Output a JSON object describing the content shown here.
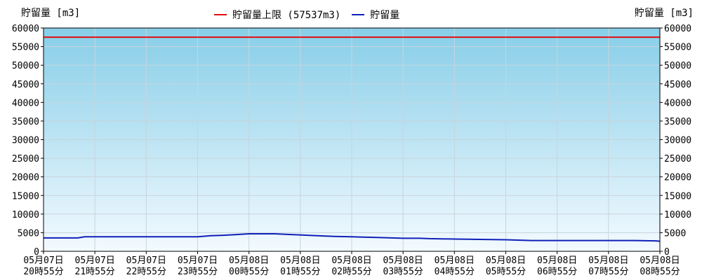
{
  "chart_data": {
    "type": "line",
    "ylabel_left": "貯留量 [m3]",
    "ylabel_right": "貯留量 [m3]",
    "ylim": [
      0,
      60000
    ],
    "yticks": [
      0,
      5000,
      10000,
      15000,
      20000,
      25000,
      30000,
      35000,
      40000,
      45000,
      50000,
      55000,
      60000
    ],
    "x_categories": [
      [
        "05月07日",
        "20時55分"
      ],
      [
        "05月07日",
        "21時55分"
      ],
      [
        "05月07日",
        "22時55分"
      ],
      [
        "05月07日",
        "23時55分"
      ],
      [
        "05月08日",
        "00時55分"
      ],
      [
        "05月08日",
        "01時55分"
      ],
      [
        "05月08日",
        "02時55分"
      ],
      [
        "05月08日",
        "03時55分"
      ],
      [
        "05月08日",
        "04時55分"
      ],
      [
        "05月08日",
        "05時55分"
      ],
      [
        "05月08日",
        "06時55分"
      ],
      [
        "05月08日",
        "07時55分"
      ],
      [
        "05月08日",
        "08時55分"
      ]
    ],
    "grid": true,
    "legend_position": "top-center",
    "background_gradient": [
      "#87cee8",
      "#f3faff"
    ],
    "series": [
      {
        "name": "貯留量上限 (57537m3)",
        "color": "#e01010",
        "type": "constant",
        "value": 57537
      },
      {
        "name": "貯留量",
        "color": "#1020b8",
        "x": [
          0,
          0.67,
          0.8,
          1.5,
          2,
          2.5,
          3,
          3.25,
          3.5,
          3.75,
          4,
          4.5,
          4.83,
          5,
          5.33,
          5.5,
          5.67,
          6,
          6.5,
          7,
          7.33,
          7.5,
          8,
          8.5,
          9,
          9.5,
          10,
          10.5,
          11,
          11.5,
          11.92,
          12
        ],
        "values": [
          3600,
          3600,
          3900,
          3900,
          3900,
          3900,
          3900,
          4200,
          4300,
          4500,
          4700,
          4700,
          4500,
          4400,
          4200,
          4100,
          4000,
          3900,
          3700,
          3500,
          3500,
          3400,
          3300,
          3200,
          3100,
          2900,
          2900,
          2900,
          2900,
          2900,
          2800,
          2700
        ]
      }
    ]
  }
}
